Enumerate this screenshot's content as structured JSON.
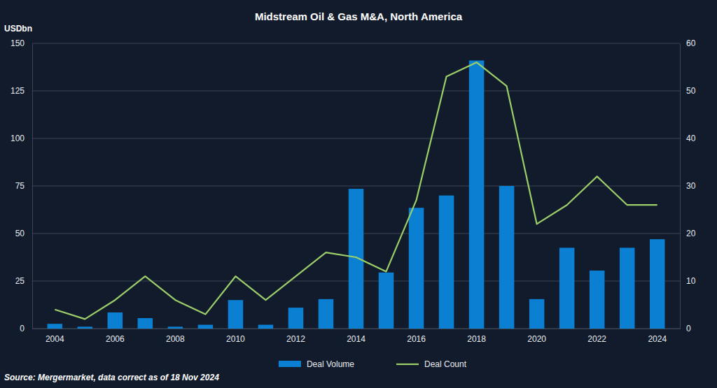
{
  "chart_data": {
    "type": "bar",
    "title": "Midstream Oil & Gas M&A, North America",
    "y_label": "USDbn",
    "source": "Source: Mergermarket, data correct as of 18 Nov 2024",
    "categories": [
      "2004",
      null,
      "2006",
      null,
      "2008",
      null,
      "2010",
      null,
      "2012",
      null,
      "2014",
      null,
      "2016",
      null,
      "2018",
      null,
      "2020",
      null,
      "2022",
      null,
      "2024"
    ],
    "series": [
      {
        "name": "Deal Volume",
        "type": "bar",
        "color": "#0b7fd1",
        "values": [
          2.5,
          1,
          8.5,
          5.5,
          1,
          2,
          15,
          2,
          11,
          15.5,
          73.5,
          29.5,
          63.5,
          70,
          141,
          75,
          15.5,
          42.5,
          30.5,
          42.5,
          47
        ]
      },
      {
        "name": "Deal Count",
        "type": "line",
        "axis": "y2",
        "color": "#9ccf6a",
        "values": [
          4,
          2,
          6,
          11,
          6,
          3,
          11,
          6,
          11,
          16,
          15,
          12,
          27,
          53,
          56,
          51,
          22,
          26,
          32,
          26,
          26
        ]
      }
    ],
    "ylim": [
      0,
      150
    ],
    "yticks": [
      0,
      25,
      50,
      75,
      100,
      125,
      150
    ],
    "y2lim": [
      0,
      60
    ],
    "y2ticks": [
      0,
      10,
      20,
      30,
      40,
      50,
      60
    ],
    "grid": true,
    "legend": "bottom"
  }
}
